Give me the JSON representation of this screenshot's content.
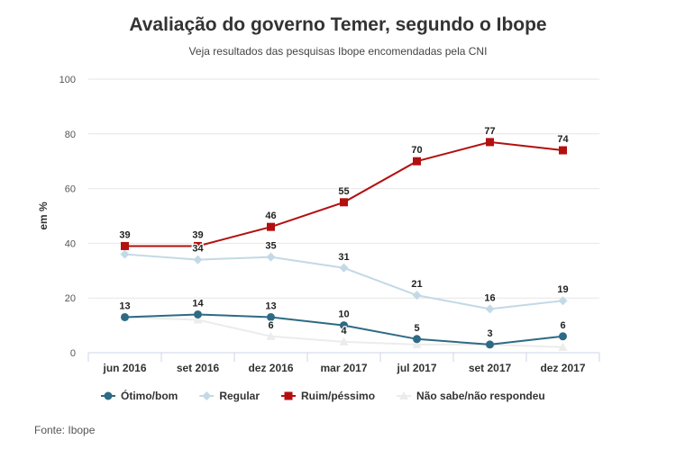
{
  "chart_data": {
    "type": "line",
    "title": "Avaliação do governo Temer, segundo o Ibope",
    "subtitle": "Veja resultados das pesquisas Ibope encomendadas pela CNI",
    "ylabel": "em %",
    "xlabel": "",
    "ylim": [
      0,
      100
    ],
    "yticks": [
      0,
      20,
      40,
      60,
      80,
      100
    ],
    "grid": true,
    "legend_position": "bottom-left",
    "categories": [
      "jun 2016",
      "set 2016",
      "dez 2016",
      "mar 2017",
      "jul 2017",
      "set 2017",
      "dez 2017"
    ],
    "series": [
      {
        "name": "Ótimo/bom",
        "color": "#2e6a84",
        "marker": "circle",
        "values": [
          13,
          14,
          13,
          10,
          5,
          3,
          6
        ],
        "labels": [
          "13",
          "14",
          "13",
          "10",
          "5",
          "3",
          "6"
        ]
      },
      {
        "name": "Regular",
        "color": "#c3d9e6",
        "marker": "diamond",
        "values": [
          36,
          34,
          35,
          31,
          21,
          16,
          19
        ],
        "labels": [
          "",
          "34",
          "35",
          "31",
          "21",
          "16",
          "19"
        ]
      },
      {
        "name": "Ruim/péssimo",
        "color": "#b30f0f",
        "marker": "square",
        "values": [
          39,
          39,
          46,
          55,
          70,
          77,
          74
        ],
        "labels": [
          "39",
          "39",
          "46",
          "55",
          "70",
          "77",
          "74"
        ]
      },
      {
        "name": "Não sabe/não respondeu",
        "color": "#ececec",
        "marker": "triangle",
        "values": [
          13,
          12,
          6,
          4,
          3,
          3,
          2
        ],
        "labels": [
          "",
          "",
          "6",
          "4",
          "",
          "",
          ""
        ]
      }
    ]
  },
  "footer": {
    "source": "Fonte: Ibope"
  }
}
